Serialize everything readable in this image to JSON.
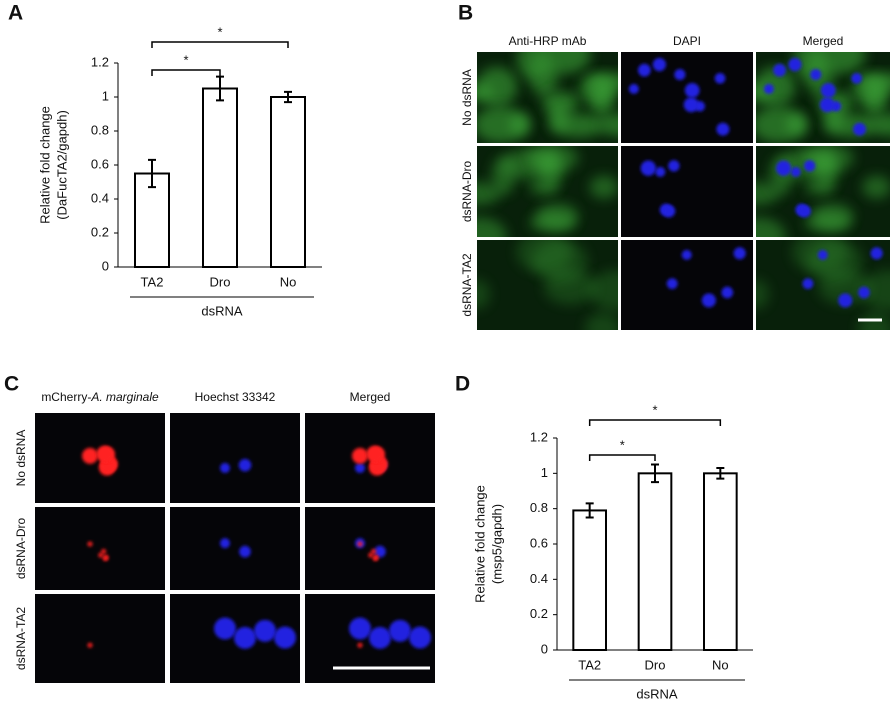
{
  "panel_labels": [
    "A",
    "B",
    "C",
    "D"
  ],
  "micrographs": [
    {
      "columns": [
        [
          "Anti-HRP mAb"
        ],
        [
          "DAPI"
        ],
        [
          "Merged"
        ]
      ],
      "rows": [
        "No dsRNA",
        "dsRNA-Dro",
        "dsRNA-TA2"
      ]
    },
    {
      "columns": [
        [
          "mCherry-",
          "A. marginale"
        ],
        [
          "Hoechst 33342"
        ],
        [
          "Merged"
        ]
      ],
      "rows": [
        "No dsRNA",
        "dsRNA-Dro",
        "dsRNA-TA2"
      ]
    }
  ],
  "chart_data": [
    {
      "type": "bar",
      "ylabel": [
        "Relative fold change",
        "(DaFucTA2/gapdh)"
      ],
      "xlabel": "dsRNA",
      "categories": [
        "TA2",
        "Dro",
        "No"
      ],
      "values": [
        0.55,
        1.05,
        1.0
      ],
      "errors": [
        0.08,
        0.07,
        0.03
      ],
      "color": "#ffffff",
      "ylim": [
        0,
        1.2
      ],
      "yticks": [
        0,
        0.2,
        0.4,
        0.6,
        0.8,
        1,
        1.2
      ],
      "annotations": [
        "*",
        "*"
      ]
    },
    {
      "type": "bar",
      "ylabel": [
        "Relative fold change",
        "(msp5/gapdh)"
      ],
      "xlabel": "dsRNA",
      "categories": [
        "TA2",
        "Dro",
        "No"
      ],
      "values": [
        0.79,
        1.0,
        1.0
      ],
      "errors": [
        0.04,
        0.05,
        0.03
      ],
      "color": "#ffffff",
      "ylim": [
        0,
        1.2
      ],
      "yticks": [
        0,
        0.2,
        0.4,
        0.6,
        0.8,
        1,
        1.2
      ],
      "annotations": [
        "*",
        "*"
      ]
    }
  ]
}
